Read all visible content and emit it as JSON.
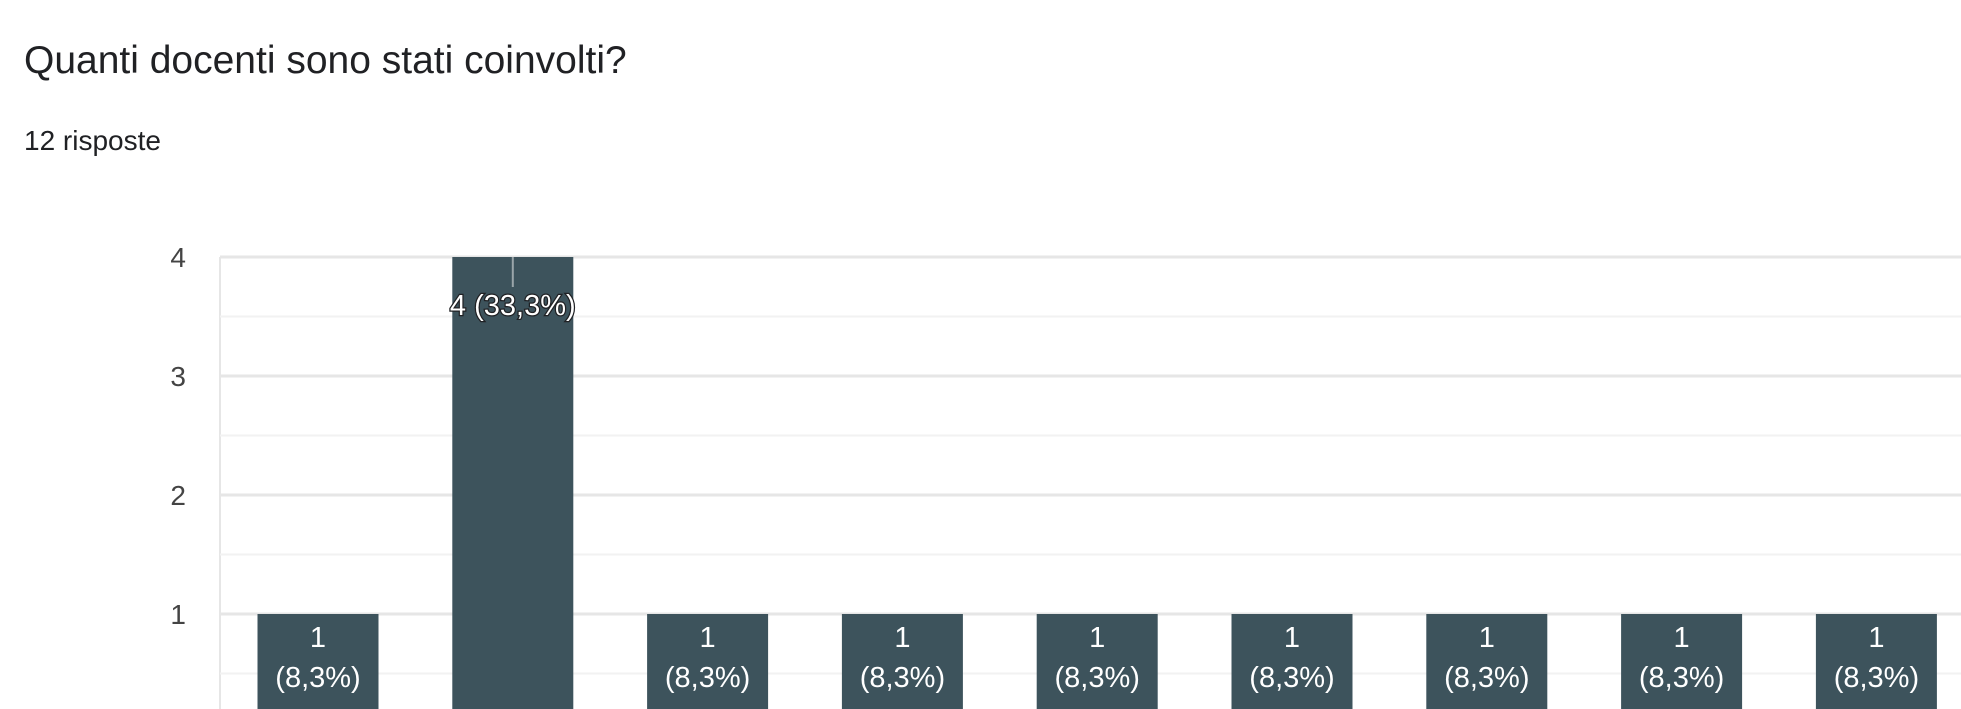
{
  "question": {
    "title": "Quanti docenti sono stati coinvolti?",
    "response_count": "12 risposte"
  },
  "colors": {
    "bar": "#3d535c",
    "grid_major": "#e6e6e6",
    "grid_minor": "#f2f2f2"
  },
  "chart_data": {
    "type": "bar",
    "title": "",
    "xlabel": "",
    "ylabel": "",
    "ylim": [
      0,
      4
    ],
    "yticks": [
      "1",
      "2",
      "3",
      "4"
    ],
    "values": [
      1,
      4,
      1,
      1,
      1,
      1,
      1,
      1,
      1
    ],
    "data_labels": [
      [
        "1",
        "(8,3%)"
      ],
      [
        "4 (33,3%)"
      ],
      [
        "1",
        "(8,3%)"
      ],
      [
        "1",
        "(8,3%)"
      ],
      [
        "1",
        "(8,3%)"
      ],
      [
        "1",
        "(8,3%)"
      ],
      [
        "1",
        "(8,3%)"
      ],
      [
        "1",
        "(8,3%)"
      ],
      [
        "1",
        "(8,3%)"
      ]
    ],
    "grid": true
  }
}
